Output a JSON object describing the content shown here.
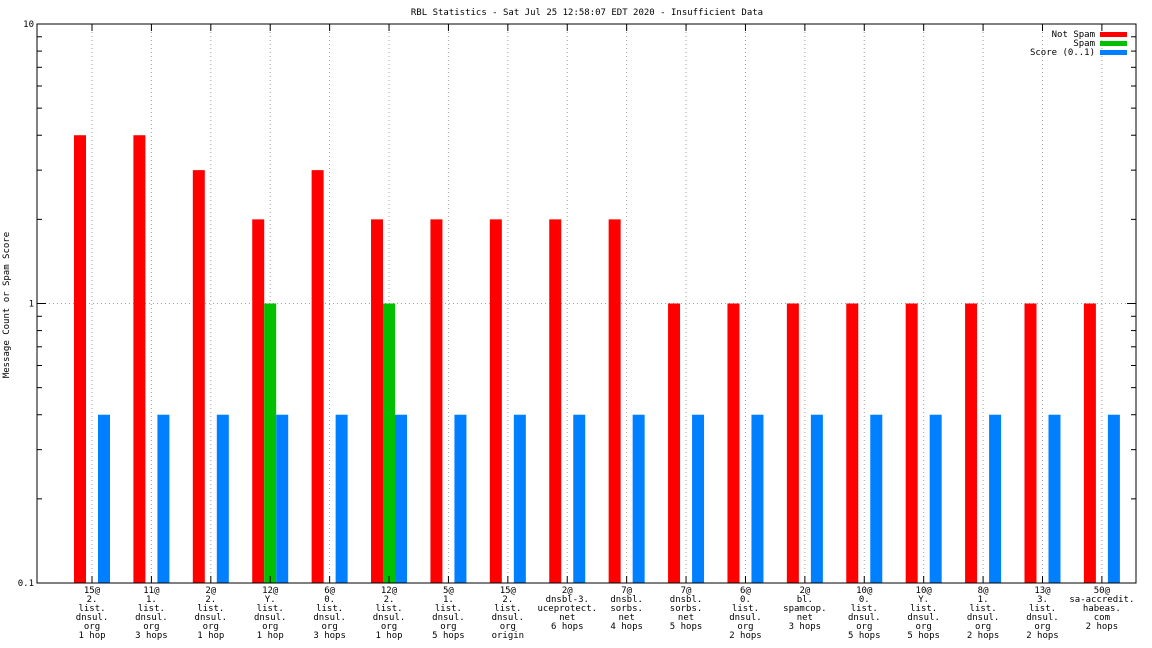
{
  "chart_data": {
    "type": "bar",
    "title": "RBL Statistics - Sat Jul 25 12:58:07 EDT 2020 - Insufficient Data",
    "xlabel": "",
    "ylabel": "Message Count or Spam Score",
    "yscale": "log",
    "ylim": [
      0.1,
      10
    ],
    "yticks": [
      "0.1",
      "1",
      "10"
    ],
    "grid": true,
    "legend_position": "top-right",
    "categories": [
      [
        "15@",
        "2.",
        "list.",
        "dnsul.",
        "org",
        "1 hop"
      ],
      [
        "11@",
        "1.",
        "list.",
        "dnsul.",
        "org",
        "3 hops"
      ],
      [
        "2@",
        "2.",
        "list.",
        "dnsul.",
        "org",
        "1 hop"
      ],
      [
        "12@",
        "Y.",
        "list.",
        "dnsul.",
        "org",
        "1 hop"
      ],
      [
        "6@",
        "0.",
        "list.",
        "dnsul.",
        "org",
        "3 hops"
      ],
      [
        "12@",
        "2.",
        "list.",
        "dnsul.",
        "org",
        "1 hop"
      ],
      [
        "5@",
        "1.",
        "list.",
        "dnsul.",
        "org",
        "5 hops"
      ],
      [
        "15@",
        "2.",
        "list.",
        "dnsul.",
        "org",
        "origin"
      ],
      [
        "2@",
        "dnsbl-3.",
        "uceprotect.",
        "net",
        "6 hops"
      ],
      [
        "7@",
        "dnsbl.",
        "sorbs.",
        "net",
        "4 hops"
      ],
      [
        "7@",
        "dnsbl.",
        "sorbs.",
        "net",
        "5 hops"
      ],
      [
        "6@",
        "0.",
        "list.",
        "dnsul.",
        "org",
        "2 hops"
      ],
      [
        "2@",
        "bl.",
        "spamcop.",
        "net",
        "3 hops"
      ],
      [
        "10@",
        "0.",
        "list.",
        "dnsul.",
        "org",
        "5 hops"
      ],
      [
        "10@",
        "Y.",
        "list.",
        "dnsul.",
        "org",
        "5 hops"
      ],
      [
        "8@",
        "1.",
        "list.",
        "dnsul.",
        "org",
        "2 hops"
      ],
      [
        "13@",
        "3.",
        "list.",
        "dnsul.",
        "org",
        "2 hops"
      ],
      [
        "50@",
        "sa-accredit.",
        "habeas.",
        "com",
        "2 hops"
      ]
    ],
    "series": [
      {
        "name": "Not Spam",
        "color": "#ff0000",
        "values": [
          4,
          4,
          3,
          2,
          3,
          2,
          2,
          2,
          2,
          2,
          1,
          1,
          1,
          1,
          1,
          1,
          1,
          1
        ]
      },
      {
        "name": "Spam",
        "color": "#00c000",
        "values": [
          0,
          0,
          0,
          1,
          0,
          1,
          0,
          0,
          0,
          0,
          0,
          0,
          0,
          0,
          0,
          0,
          0,
          0
        ]
      },
      {
        "name": "Score (0..1)",
        "color": "#0080ff",
        "values": [
          0.4,
          0.4,
          0.4,
          0.4,
          0.4,
          0.4,
          0.4,
          0.4,
          0.4,
          0.4,
          0.4,
          0.4,
          0.4,
          0.4,
          0.4,
          0.4,
          0.4,
          0.4
        ]
      }
    ]
  }
}
